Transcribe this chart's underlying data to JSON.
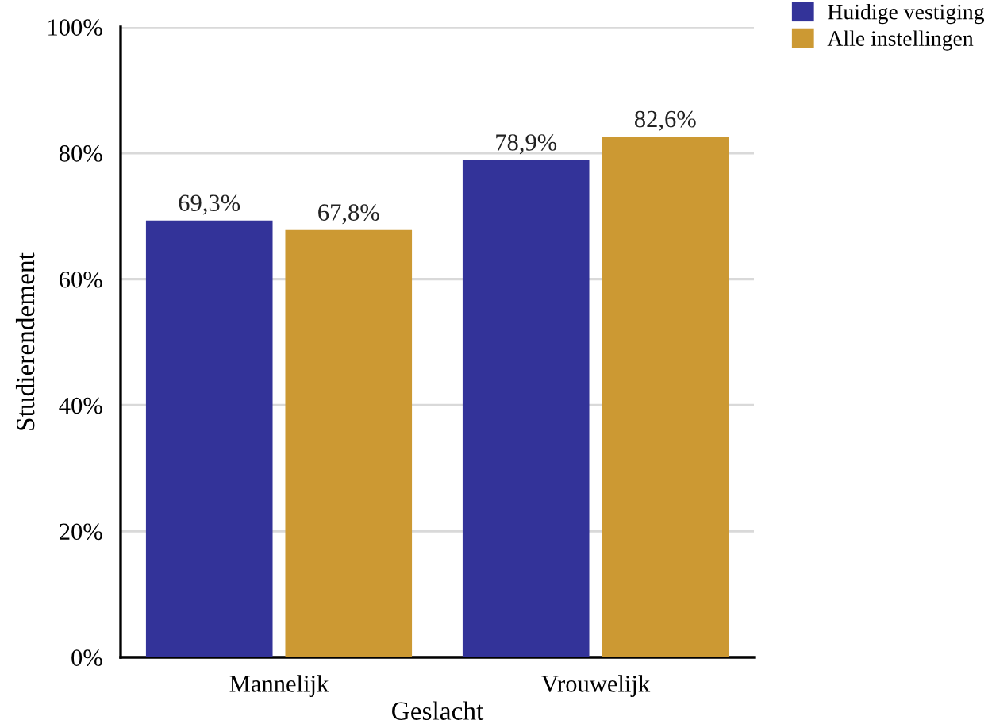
{
  "chart_data": {
    "type": "bar",
    "xlabel": "Geslacht",
    "ylabel": "Studierendement",
    "categories": [
      "Mannelijk",
      "Vrouwelijk"
    ],
    "series": [
      {
        "name": "Huidige vestiging",
        "color": "#333399",
        "values": [
          69.3,
          78.9
        ],
        "value_labels": [
          "69,3%",
          "78,9%"
        ]
      },
      {
        "name": "Alle instellingen",
        "color": "#cc9933",
        "values": [
          67.8,
          82.6
        ],
        "value_labels": [
          "67,8%",
          "82,6%"
        ]
      }
    ],
    "ylim": [
      0,
      100
    ],
    "yticks": [
      {
        "value": 0,
        "label": "0%"
      },
      {
        "value": 20,
        "label": "20%"
      },
      {
        "value": 40,
        "label": "40%"
      },
      {
        "value": 60,
        "label": "60%"
      },
      {
        "value": 80,
        "label": "80%"
      },
      {
        "value": 100,
        "label": "100%"
      }
    ],
    "grid": "y",
    "legend": "top right"
  }
}
